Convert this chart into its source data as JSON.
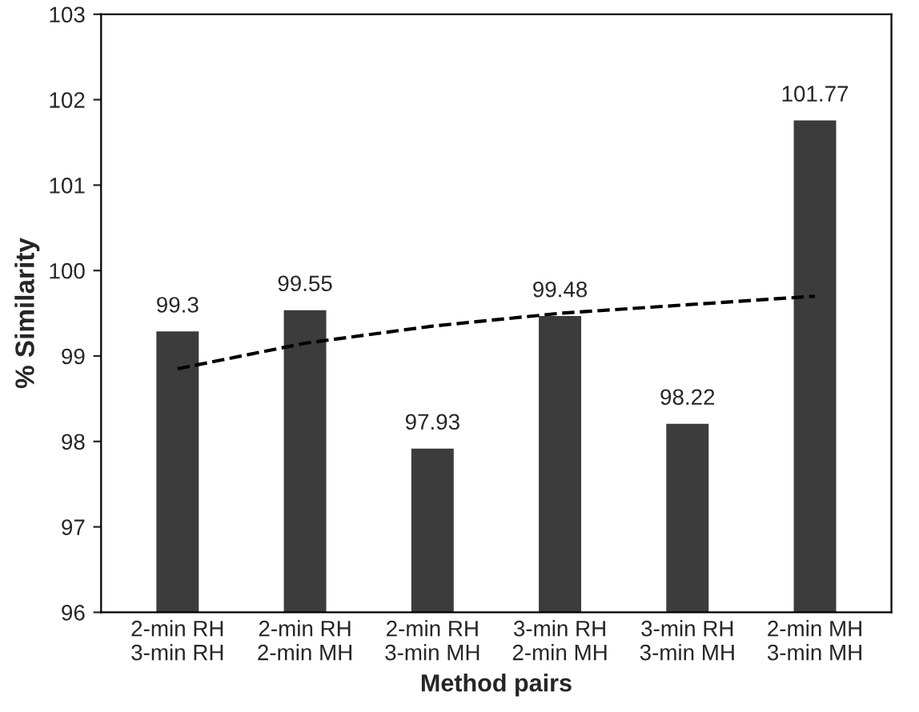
{
  "chart_data": {
    "type": "bar",
    "xlabel": "Method pairs",
    "ylabel": "% Similarity",
    "categories": [
      "2-min RH\n3-min RH",
      "2-min RH\n2-min MH",
      "2-min RH\n3-min MH",
      "3-min RH\n2-min MH",
      "3-min RH\n3-min MH",
      "2-min MH\n3-min MH"
    ],
    "series": [
      {
        "color": "#3c3c3c",
        "values": [
          99.3,
          99.55,
          97.93,
          99.48,
          98.22,
          101.77
        ]
      },
      {
        "type": "line",
        "color": "#000000",
        "line_style": "dashed",
        "values": [
          98.85,
          99.15,
          99.35,
          99.5,
          99.6,
          99.7
        ]
      }
    ],
    "value_labels": [
      "99.3",
      "99.55",
      "97.93",
      "99.48",
      "98.22",
      "101.77"
    ],
    "ylim": [
      96,
      103
    ],
    "yticks": [
      96,
      97,
      98,
      99,
      100,
      101,
      102,
      103
    ],
    "grid": false
  }
}
